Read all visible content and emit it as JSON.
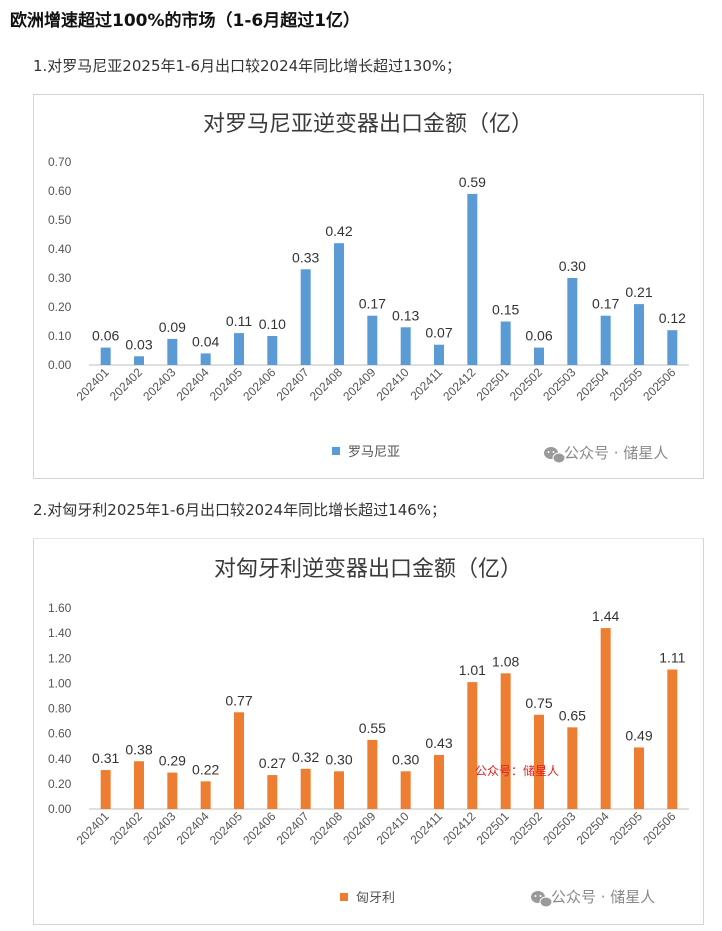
{
  "page": {
    "title": "欧洲增速超过100%的市场（1-6月超过1亿）",
    "note1": "1.对罗马尼亚2025年1-6月出口较2024年同比增长超过130%；",
    "note2": "2.对匈牙利2025年1-6月出口较2024年同比增长超过146%；"
  },
  "watermark": {
    "text": "公众号 · 储星人",
    "red_text": "公众号：储星人"
  },
  "chart_data": [
    {
      "type": "bar",
      "title": "对罗马尼亚逆变器出口金额（亿）",
      "categories": [
        "202401",
        "202402",
        "202403",
        "202404",
        "202405",
        "202406",
        "202407",
        "202408",
        "202409",
        "202410",
        "202411",
        "202412",
        "202501",
        "202502",
        "202503",
        "202504",
        "202505",
        "202506"
      ],
      "series": [
        {
          "name": "罗马尼亚",
          "values": [
            0.06,
            0.03,
            0.09,
            0.04,
            0.11,
            0.1,
            0.33,
            0.42,
            0.17,
            0.13,
            0.07,
            0.59,
            0.15,
            0.06,
            0.3,
            0.17,
            0.21,
            0.12
          ],
          "color": "#5b9bd5"
        }
      ],
      "data_labels": [
        "0.06",
        "0.03",
        "0.09",
        "0.04",
        "0.11",
        "0.10",
        "0.33",
        "0.42",
        "0.17",
        "0.13",
        "0.07",
        "0.59",
        "0.15",
        "0.06",
        "0.30",
        "0.17",
        "0.21",
        "0.12"
      ],
      "yticks": [
        "0.00",
        "0.10",
        "0.20",
        "0.30",
        "0.40",
        "0.50",
        "0.60",
        "0.70"
      ],
      "ylim": [
        0,
        0.7
      ],
      "grid": false,
      "legend": "bottom"
    },
    {
      "type": "bar",
      "title": "对匈牙利逆变器出口金额（亿）",
      "categories": [
        "202401",
        "202402",
        "202403",
        "202404",
        "202405",
        "202406",
        "202407",
        "202408",
        "202409",
        "202410",
        "202411",
        "202412",
        "202501",
        "202502",
        "202503",
        "202504",
        "202505",
        "202506"
      ],
      "series": [
        {
          "name": "匈牙利",
          "values": [
            0.31,
            0.38,
            0.29,
            0.22,
            0.77,
            0.27,
            0.32,
            0.3,
            0.55,
            0.3,
            0.43,
            1.01,
            1.08,
            0.75,
            0.65,
            1.44,
            0.49,
            1.11
          ],
          "color": "#ed7d31"
        }
      ],
      "data_labels": [
        "0.31",
        "0.38",
        "0.29",
        "0.22",
        "0.77",
        "0.27",
        "0.32",
        "0.30",
        "0.55",
        "0.30",
        "0.43",
        "1.01",
        "1.08",
        "0.75",
        "0.65",
        "1.44",
        "0.49",
        "1.11"
      ],
      "yticks": [
        "0.00",
        "0.20",
        "0.40",
        "0.60",
        "0.80",
        "1.00",
        "1.20",
        "1.40",
        "1.60"
      ],
      "ylim": [
        0,
        1.6
      ],
      "grid": false,
      "legend": "bottom"
    }
  ]
}
